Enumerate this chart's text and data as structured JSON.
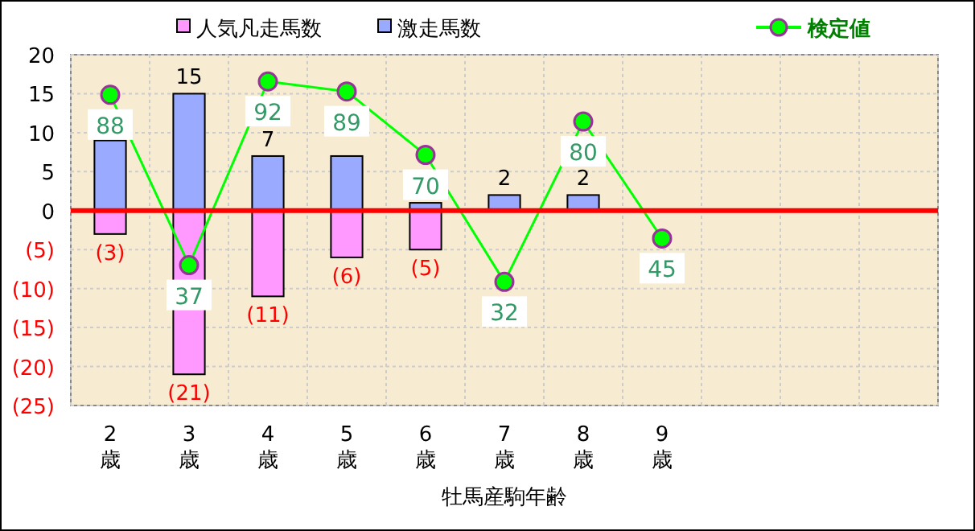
{
  "chart_data": {
    "type": "bar",
    "xlabel": "牡馬産駒年齢",
    "categories": [
      "2歳",
      "3歳",
      "4歳",
      "5歳",
      "6歳",
      "7歳",
      "8歳",
      "9歳",
      null,
      null,
      null
    ],
    "ylim": [
      -25,
      20
    ],
    "yticks": [
      20,
      15,
      10,
      5,
      0,
      {
        "value": -5,
        "label": "(5)"
      },
      {
        "value": -10,
        "label": "(10)"
      },
      {
        "value": -15,
        "label": "(15)"
      },
      {
        "value": -20,
        "label": "(20)"
      },
      {
        "value": -25,
        "label": "(25)"
      }
    ],
    "y2lim": [
      -5,
      100
    ],
    "tick_labels": "xy",
    "grid": true,
    "legend": "top",
    "marker": "circle",
    "line_style": "solid",
    "ref_lines": [
      {
        "axis": "y",
        "value": 0,
        "color": "#ff0000"
      }
    ],
    "series": [
      {
        "name": "人気凡走馬数",
        "color": "#ff99ff",
        "values": [
          -3,
          -21,
          -11,
          -6,
          -5,
          null,
          null,
          null,
          null,
          null,
          null
        ],
        "value_labels": [
          "(3)",
          "(21)",
          "(11)",
          "(6)",
          "(5)",
          null,
          null,
          null,
          null,
          null,
          null
        ]
      },
      {
        "name": "激走馬数",
        "color": "#99aaff",
        "values": [
          9,
          15,
          7,
          7,
          1,
          2,
          2,
          null,
          null,
          null,
          null
        ],
        "value_labels": [
          null,
          "15",
          "7",
          null,
          null,
          "2",
          "2",
          null,
          null,
          null,
          null
        ]
      },
      {
        "name": "検定値",
        "type": "line",
        "axis": "y2",
        "color": "#00ff00",
        "values": [
          88,
          37,
          92,
          89,
          70,
          32,
          80,
          45,
          null,
          null,
          null
        ],
        "value_labels": [
          "88",
          "37",
          "92",
          "89",
          "70",
          "32",
          "80",
          "45",
          null,
          null,
          null
        ]
      }
    ]
  }
}
